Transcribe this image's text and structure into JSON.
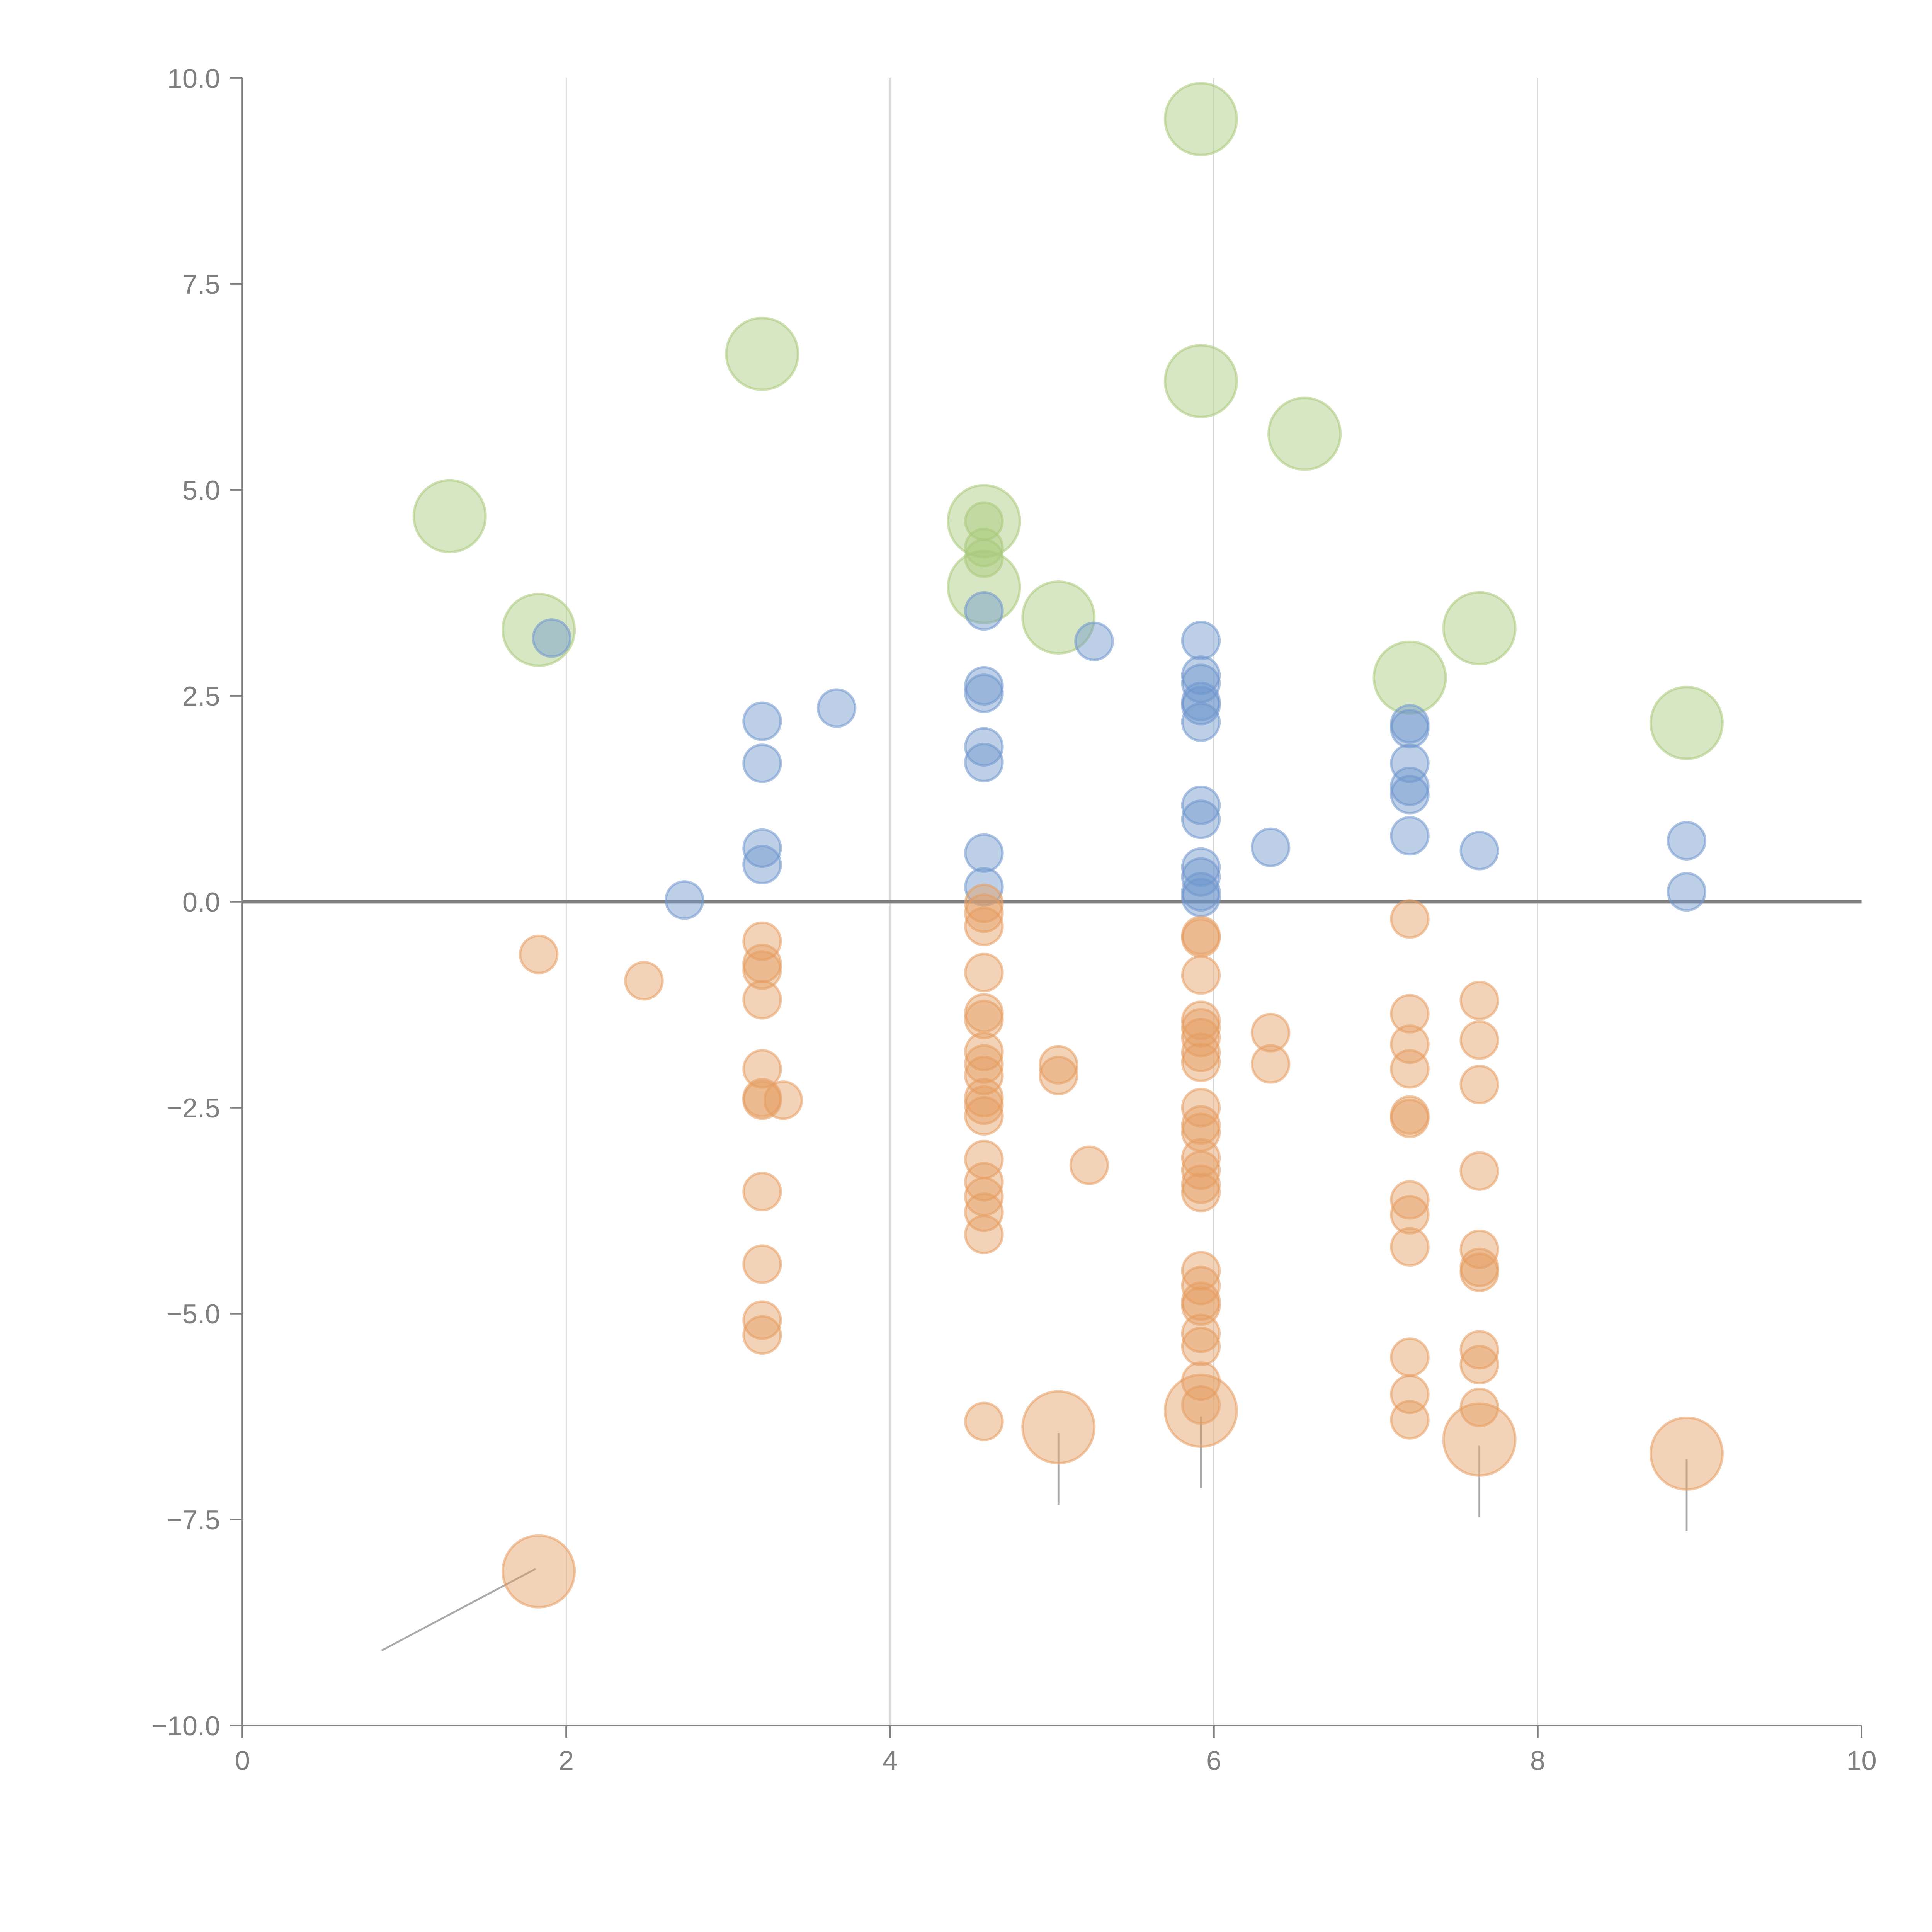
{
  "chart_data": {
    "type": "scatter",
    "title": "",
    "xlabel": "",
    "ylabel": "",
    "xlim": [
      0,
      10
    ],
    "ylim": [
      -10,
      10
    ],
    "xticks": [
      "0",
      "2",
      "4",
      "6",
      "8",
      "10"
    ],
    "yticks": [
      "10.0",
      "7.5",
      "5.0",
      "2.5",
      "0.0",
      "−2.5",
      "−5.0",
      "−7.5",
      "−10.0"
    ],
    "xtick_values": [
      0,
      2,
      4,
      6,
      8,
      10
    ],
    "ytick_values": [
      10,
      7.5,
      5,
      2.5,
      0,
      -2.5,
      -5,
      -7.5,
      -10
    ],
    "grid": "vertical",
    "zero_line": true,
    "series": [
      {
        "name": "green",
        "color": "#a9c97a",
        "size": "large",
        "points": [
          {
            "x": 1.28,
            "y": 4.68
          },
          {
            "x": 1.83,
            "y": 3.3
          },
          {
            "x": 3.21,
            "y": 6.65
          },
          {
            "x": 4.58,
            "y": 4.62
          },
          {
            "x": 4.58,
            "y": 3.82
          },
          {
            "x": 5.04,
            "y": 3.45
          },
          {
            "x": 5.92,
            "y": 9.5
          },
          {
            "x": 5.92,
            "y": 6.32
          },
          {
            "x": 6.56,
            "y": 5.68
          },
          {
            "x": 7.21,
            "y": 2.72
          },
          {
            "x": 7.64,
            "y": 3.32
          },
          {
            "x": 8.92,
            "y": 2.17
          }
        ]
      },
      {
        "name": "green-small",
        "color": "#a9c97a",
        "size": "small",
        "points": [
          {
            "x": 4.58,
            "y": 4.62
          },
          {
            "x": 4.58,
            "y": 4.3
          },
          {
            "x": 4.58,
            "y": 4.17
          }
        ]
      },
      {
        "name": "blue",
        "color": "#6f96cc",
        "size": "small",
        "points": [
          {
            "x": 1.91,
            "y": 3.2
          },
          {
            "x": 2.73,
            "y": 0.02
          },
          {
            "x": 3.21,
            "y": 2.19
          },
          {
            "x": 3.21,
            "y": 1.68
          },
          {
            "x": 3.21,
            "y": 0.65
          },
          {
            "x": 3.21,
            "y": 0.45
          },
          {
            "x": 3.67,
            "y": 2.35
          },
          {
            "x": 4.58,
            "y": 3.53
          },
          {
            "x": 4.58,
            "y": 2.62
          },
          {
            "x": 4.58,
            "y": 2.53
          },
          {
            "x": 4.58,
            "y": 1.88
          },
          {
            "x": 4.58,
            "y": 1.69
          },
          {
            "x": 4.58,
            "y": 0.59
          },
          {
            "x": 4.58,
            "y": 0.18
          },
          {
            "x": 5.26,
            "y": 3.16
          },
          {
            "x": 5.92,
            "y": 3.17
          },
          {
            "x": 5.92,
            "y": 2.75
          },
          {
            "x": 5.92,
            "y": 2.65
          },
          {
            "x": 5.92,
            "y": 2.43
          },
          {
            "x": 5.92,
            "y": 2.38
          },
          {
            "x": 5.92,
            "y": 2.18
          },
          {
            "x": 5.92,
            "y": 1.17
          },
          {
            "x": 5.92,
            "y": 1.0
          },
          {
            "x": 5.92,
            "y": 0.42
          },
          {
            "x": 5.92,
            "y": 0.3
          },
          {
            "x": 5.92,
            "y": 0.12
          },
          {
            "x": 5.92,
            "y": 0.05
          },
          {
            "x": 6.35,
            "y": 0.66
          },
          {
            "x": 7.21,
            "y": 2.16
          },
          {
            "x": 7.21,
            "y": 2.1
          },
          {
            "x": 7.21,
            "y": 1.68
          },
          {
            "x": 7.21,
            "y": 1.4
          },
          {
            "x": 7.21,
            "y": 1.3
          },
          {
            "x": 7.21,
            "y": 0.8
          },
          {
            "x": 7.64,
            "y": 0.62
          },
          {
            "x": 8.92,
            "y": 0.74
          },
          {
            "x": 8.92,
            "y": 0.12
          }
        ]
      },
      {
        "name": "orange",
        "color": "#e59d61",
        "size": "small",
        "points": [
          {
            "x": 1.83,
            "y": -0.64
          },
          {
            "x": 2.48,
            "y": -0.96
          },
          {
            "x": 3.21,
            "y": -0.48
          },
          {
            "x": 3.21,
            "y": -0.75
          },
          {
            "x": 3.21,
            "y": -0.83
          },
          {
            "x": 3.21,
            "y": -1.19
          },
          {
            "x": 3.21,
            "y": -2.03
          },
          {
            "x": 3.21,
            "y": -2.38
          },
          {
            "x": 3.21,
            "y": -2.41
          },
          {
            "x": 3.34,
            "y": -2.41
          },
          {
            "x": 3.21,
            "y": -3.52
          },
          {
            "x": 3.21,
            "y": -4.4
          },
          {
            "x": 3.21,
            "y": -5.08
          },
          {
            "x": 3.21,
            "y": -5.26
          },
          {
            "x": 4.58,
            "y": -0.02
          },
          {
            "x": 4.58,
            "y": -0.14
          },
          {
            "x": 4.58,
            "y": -0.3
          },
          {
            "x": 4.58,
            "y": -0.86
          },
          {
            "x": 4.58,
            "y": -1.35
          },
          {
            "x": 4.58,
            "y": -1.43
          },
          {
            "x": 4.58,
            "y": -1.82
          },
          {
            "x": 4.58,
            "y": -1.97
          },
          {
            "x": 4.58,
            "y": -2.11
          },
          {
            "x": 4.58,
            "y": -2.38
          },
          {
            "x": 4.58,
            "y": -2.47
          },
          {
            "x": 4.58,
            "y": -2.6
          },
          {
            "x": 4.58,
            "y": -3.13
          },
          {
            "x": 4.58,
            "y": -3.4
          },
          {
            "x": 4.58,
            "y": -3.58
          },
          {
            "x": 4.58,
            "y": -3.77
          },
          {
            "x": 4.58,
            "y": -4.04
          },
          {
            "x": 4.58,
            "y": -6.31
          },
          {
            "x": 5.04,
            "y": -1.98
          },
          {
            "x": 5.04,
            "y": -2.11
          },
          {
            "x": 5.23,
            "y": -3.2
          },
          {
            "x": 5.92,
            "y": -0.41
          },
          {
            "x": 5.92,
            "y": -0.44
          },
          {
            "x": 5.92,
            "y": -0.89
          },
          {
            "x": 5.92,
            "y": -1.44
          },
          {
            "x": 5.92,
            "y": -1.53
          },
          {
            "x": 5.92,
            "y": -1.65
          },
          {
            "x": 5.92,
            "y": -1.83
          },
          {
            "x": 5.92,
            "y": -1.95
          },
          {
            "x": 5.92,
            "y": -2.5
          },
          {
            "x": 5.92,
            "y": -2.71
          },
          {
            "x": 5.92,
            "y": -2.8
          },
          {
            "x": 5.92,
            "y": -3.11
          },
          {
            "x": 5.92,
            "y": -3.26
          },
          {
            "x": 5.92,
            "y": -3.43
          },
          {
            "x": 5.92,
            "y": -3.53
          },
          {
            "x": 5.92,
            "y": -4.48
          },
          {
            "x": 5.92,
            "y": -4.66
          },
          {
            "x": 5.92,
            "y": -4.85
          },
          {
            "x": 5.92,
            "y": -4.91
          },
          {
            "x": 5.92,
            "y": -5.24
          },
          {
            "x": 5.92,
            "y": -5.4
          },
          {
            "x": 5.92,
            "y": -5.82
          },
          {
            "x": 5.92,
            "y": -6.11
          },
          {
            "x": 6.35,
            "y": -1.59
          },
          {
            "x": 6.35,
            "y": -1.97
          },
          {
            "x": 7.21,
            "y": -0.21
          },
          {
            "x": 7.21,
            "y": -1.36
          },
          {
            "x": 7.21,
            "y": -1.73
          },
          {
            "x": 7.21,
            "y": -2.03
          },
          {
            "x": 7.21,
            "y": -2.59
          },
          {
            "x": 7.21,
            "y": -2.63
          },
          {
            "x": 7.21,
            "y": -3.62
          },
          {
            "x": 7.21,
            "y": -3.8
          },
          {
            "x": 7.21,
            "y": -4.19
          },
          {
            "x": 7.21,
            "y": -5.53
          },
          {
            "x": 7.21,
            "y": -5.98
          },
          {
            "x": 7.21,
            "y": -6.29
          },
          {
            "x": 7.64,
            "y": -1.2
          },
          {
            "x": 7.64,
            "y": -1.68
          },
          {
            "x": 7.64,
            "y": -2.22
          },
          {
            "x": 7.64,
            "y": -3.27
          },
          {
            "x": 7.64,
            "y": -4.22
          },
          {
            "x": 7.64,
            "y": -4.44
          },
          {
            "x": 7.64,
            "y": -4.5
          },
          {
            "x": 7.64,
            "y": -5.44
          },
          {
            "x": 7.64,
            "y": -5.62
          },
          {
            "x": 7.64,
            "y": -6.14
          }
        ]
      },
      {
        "name": "orange-large",
        "color": "#e59d61",
        "size": "large",
        "points": [
          {
            "x": 1.83,
            "y": -8.13
          },
          {
            "x": 5.04,
            "y": -6.38
          },
          {
            "x": 5.92,
            "y": -6.18
          },
          {
            "x": 7.64,
            "y": -6.53
          },
          {
            "x": 8.92,
            "y": -6.7
          }
        ]
      }
    ],
    "leader_lines": [
      {
        "from": [
          1.81,
          -8.1
        ],
        "to": [
          0.86,
          -9.09
        ]
      },
      {
        "from": [
          5.04,
          -6.45
        ],
        "to": [
          5.04,
          -7.32
        ]
      },
      {
        "from": [
          5.92,
          -6.25
        ],
        "to": [
          5.92,
          -7.12
        ]
      },
      {
        "from": [
          7.64,
          -6.6
        ],
        "to": [
          7.64,
          -7.47
        ]
      },
      {
        "from": [
          8.92,
          -6.77
        ],
        "to": [
          8.92,
          -7.64
        ]
      }
    ]
  }
}
